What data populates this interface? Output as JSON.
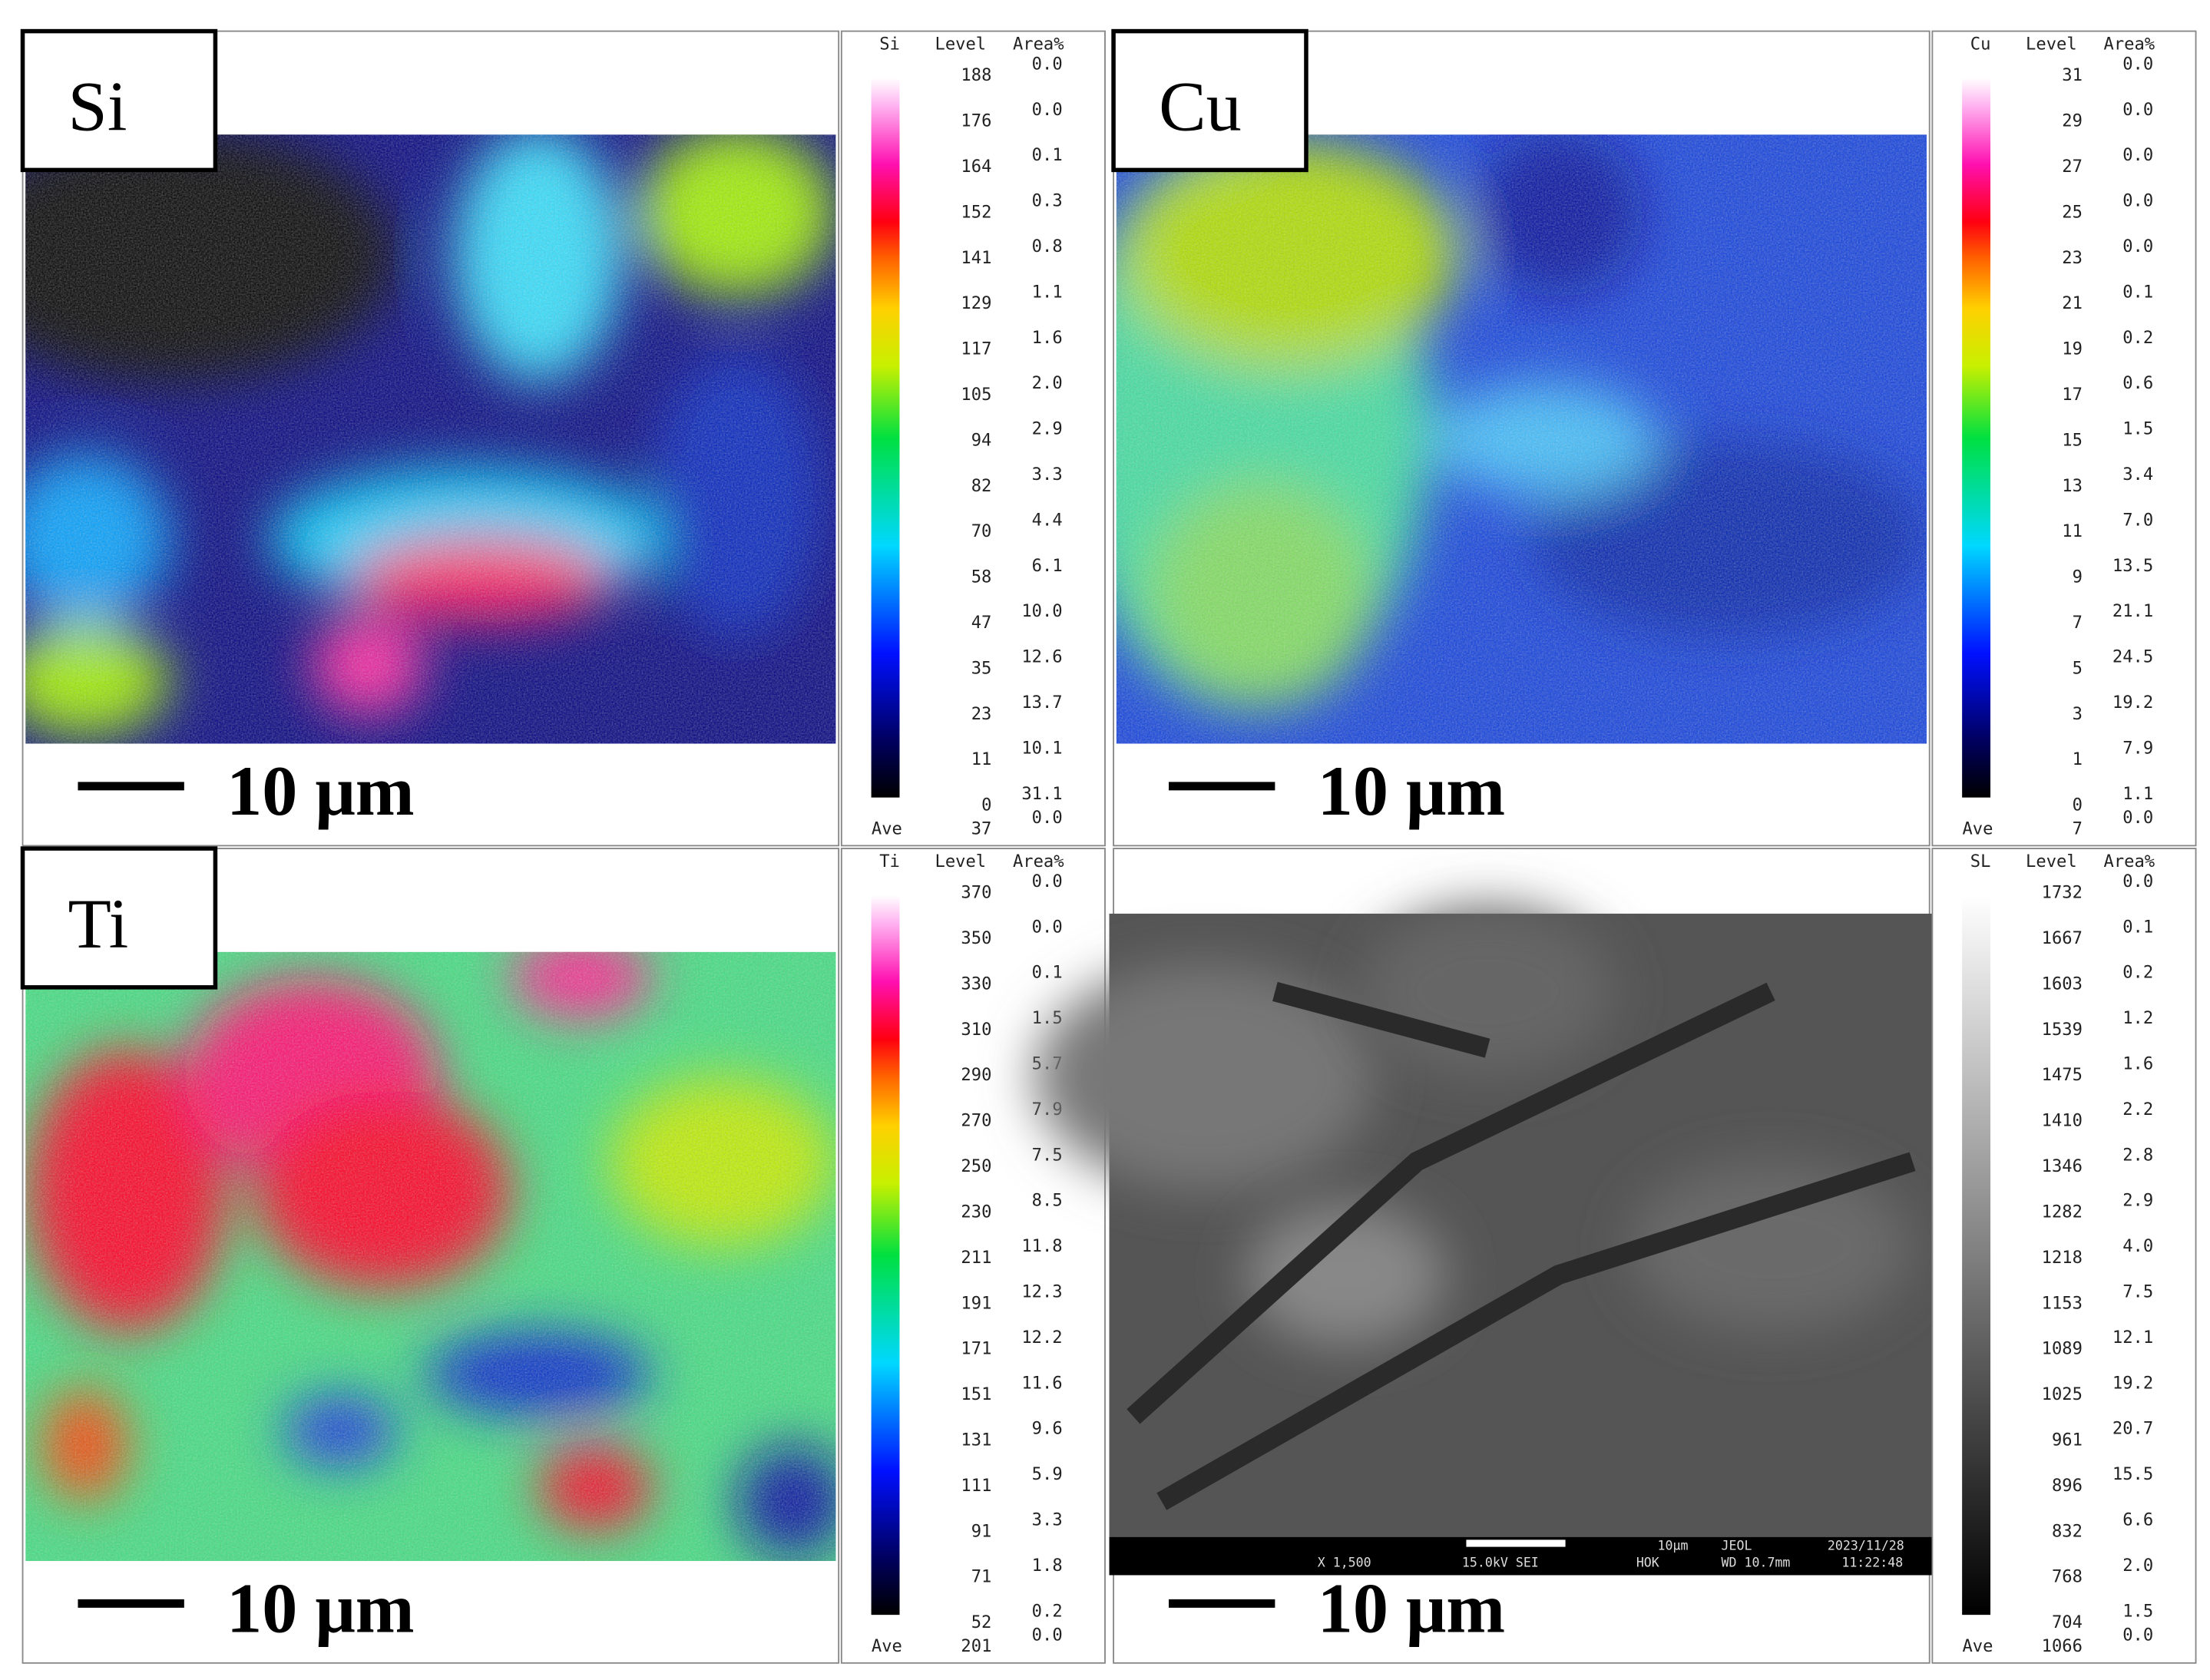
{
  "panels": [
    {
      "label": "Si",
      "scale_bar": "10 μm",
      "legend": {
        "element": "Si",
        "level_header": "Level",
        "area_header": "Area%",
        "levels": [
          "188",
          "176",
          "164",
          "152",
          "141",
          "129",
          "117",
          "105",
          "94",
          "82",
          "70",
          "58",
          "47",
          "35",
          "23",
          "11",
          "0"
        ],
        "areas": [
          "0.0",
          "0.0",
          "0.1",
          "0.3",
          "0.8",
          "1.1",
          "1.6",
          "2.0",
          "2.9",
          "3.3",
          "4.4",
          "6.1",
          "10.0",
          "12.6",
          "13.7",
          "10.1",
          "31.1"
        ],
        "ave_label": "Ave",
        "ave_level": "37",
        "ave_area": "0.0"
      }
    },
    {
      "label": "Cu",
      "scale_bar": "10 μm",
      "legend": {
        "element": "Cu",
        "level_header": "Level",
        "area_header": "Area%",
        "levels": [
          "31",
          "29",
          "27",
          "25",
          "23",
          "21",
          "19",
          "17",
          "15",
          "13",
          "11",
          "9",
          "7",
          "5",
          "3",
          "1",
          "0"
        ],
        "areas": [
          "0.0",
          "0.0",
          "0.0",
          "0.0",
          "0.0",
          "0.1",
          "0.2",
          "0.6",
          "1.5",
          "3.4",
          "7.0",
          "13.5",
          "21.1",
          "24.5",
          "19.2",
          "7.9",
          "1.1"
        ],
        "ave_label": "Ave",
        "ave_level": "7",
        "ave_area": "0.0"
      }
    },
    {
      "label": "Ti",
      "scale_bar": "10 μm",
      "legend": {
        "element": "Ti",
        "level_header": "Level",
        "area_header": "Area%",
        "levels": [
          "370",
          "350",
          "330",
          "310",
          "290",
          "270",
          "250",
          "230",
          "211",
          "191",
          "171",
          "151",
          "131",
          "111",
          "91",
          "71",
          "52"
        ],
        "areas": [
          "0.0",
          "0.0",
          "0.1",
          "1.5",
          "5.7",
          "7.9",
          "7.5",
          "8.5",
          "11.8",
          "12.3",
          "12.2",
          "11.6",
          "9.6",
          "5.9",
          "3.3",
          "1.8",
          "0.2"
        ],
        "ave_label": "Ave",
        "ave_level": "201",
        "ave_area": "0.0"
      }
    },
    {
      "scale_bar": "10 μm",
      "legend": {
        "element": "SL",
        "level_header": "Level",
        "area_header": "Area%",
        "levels": [
          "1732",
          "1667",
          "1603",
          "1539",
          "1475",
          "1410",
          "1346",
          "1282",
          "1218",
          "1153",
          "1089",
          "1025",
          "961",
          "896",
          "832",
          "768",
          "704"
        ],
        "areas": [
          "0.0",
          "0.1",
          "0.2",
          "1.2",
          "1.6",
          "2.2",
          "2.8",
          "2.9",
          "4.0",
          "7.5",
          "12.1",
          "19.2",
          "20.7",
          "15.5",
          "6.6",
          "2.0",
          "1.5"
        ],
        "ave_label": "Ave",
        "ave_level": "1066",
        "ave_area": "0.0"
      },
      "sem_info": [
        "10μm",
        "JEOL",
        "2023/11/28",
        "X 1,500",
        "15.0kV SEI",
        "HOK",
        "WD 10.7mm",
        "11:22:48"
      ]
    }
  ]
}
